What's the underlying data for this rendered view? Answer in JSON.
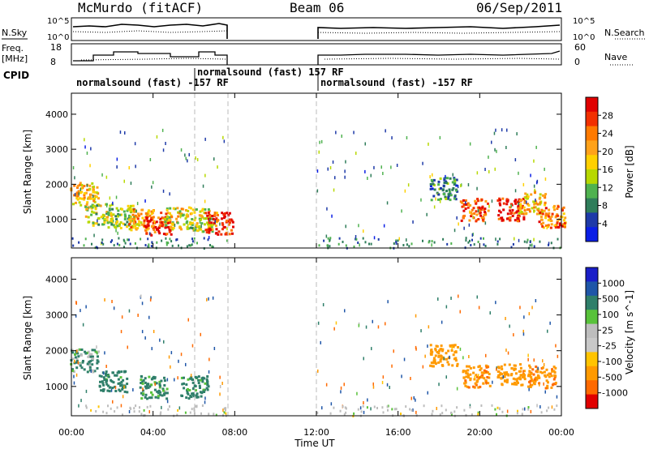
{
  "header": {
    "station": "McMurdo (fitACF)",
    "beam": "Beam 06",
    "date": "06/Sep/2011"
  },
  "noise_panel": {
    "left_label": "N.Sky",
    "right_label": "N.Search",
    "left_ticks": [
      "10^5",
      "10^0"
    ],
    "right_ticks": [
      "10^5",
      "10^0"
    ]
  },
  "freq_panel": {
    "left_label_1": "Freq.",
    "left_label_2": "[MHz]",
    "left_ticks": [
      "18",
      "8"
    ],
    "right_label": "Nave",
    "right_ticks": [
      "60",
      "0"
    ]
  },
  "cpid": {
    "label": "CPID",
    "segments": [
      {
        "text": "normalsound (fast) -157 RF",
        "start_h": 0.0
      },
      {
        "text": "normalsound (fast) 157 RF",
        "start_h": 6.1
      },
      {
        "text": "normalsound (fast) -157 RF",
        "start_h": 12.0
      }
    ]
  },
  "power_colorbar": {
    "title": "Power [dB]",
    "ticks": [
      "28",
      "24",
      "20",
      "16",
      "12",
      "8",
      "4"
    ],
    "colors": [
      "#e00000",
      "#f23000",
      "#ff7a00",
      "#ffa21a",
      "#ffd000",
      "#b7d800",
      "#4fb24f",
      "#2f7d5a",
      "#1e3aa8",
      "#0a1ee6"
    ]
  },
  "velocity_colorbar": {
    "title": "Velocity [m s^-1]",
    "ticks": [
      "1000",
      "500",
      "100",
      "25",
      "-25",
      "-100",
      "-500",
      "-1000"
    ],
    "colors": [
      "#1a1ec8",
      "#1f56a8",
      "#2f7f6a",
      "#58c23a",
      "#bdbdbd",
      "#c8c8c8",
      "#ffc400",
      "#ff9a00",
      "#ff6a00",
      "#e00000"
    ]
  },
  "axes": {
    "ylabel": "Slant Range [km]",
    "xlabel": "Time UT",
    "yticks": [
      "1000",
      "2000",
      "3000",
      "4000"
    ],
    "xticks": [
      "00:00",
      "04:00",
      "08:00",
      "12:00",
      "16:00",
      "20:00",
      "00:00"
    ]
  },
  "chart_data": {
    "type": "heatmap",
    "title": "McMurdo (fitACF) Beam 06 06/Sep/2011",
    "xlabel": "Time UT",
    "ylabel": "Slant Range [km]",
    "xlim": [
      0,
      24
    ],
    "ylim": [
      180,
      4600
    ],
    "data_gap_hours": [
      7.6,
      12.0
    ],
    "panels": [
      {
        "name": "Power [dB]",
        "scale": [
          0,
          30
        ],
        "blobs": [
          {
            "t": 0.6,
            "r": 1750,
            "v": 18
          },
          {
            "t": 1.3,
            "r": 1150,
            "v": 14
          },
          {
            "t": 2.4,
            "r": 1100,
            "v": 12
          },
          {
            "t": 3.4,
            "r": 1000,
            "v": 20
          },
          {
            "t": 4.2,
            "r": 900,
            "v": 26
          },
          {
            "t": 5.2,
            "r": 1050,
            "v": 16
          },
          {
            "t": 6.4,
            "r": 1000,
            "v": 14
          },
          {
            "t": 7.2,
            "r": 900,
            "v": 28
          },
          {
            "t": 18.2,
            "r": 1900,
            "v": 8
          },
          {
            "t": 19.7,
            "r": 1300,
            "v": 24
          },
          {
            "t": 21.5,
            "r": 1300,
            "v": 28
          },
          {
            "t": 22.5,
            "r": 1500,
            "v": 18
          },
          {
            "t": 23.5,
            "r": 1100,
            "v": 22
          }
        ]
      },
      {
        "name": "Velocity [m s^-1]",
        "scale": [
          -1000,
          1000
        ],
        "blobs": [
          {
            "t": 0.6,
            "r": 1750,
            "v": 80
          },
          {
            "t": 2.0,
            "r": 1150,
            "v": 150
          },
          {
            "t": 4.0,
            "r": 1000,
            "v": 120
          },
          {
            "t": 6.0,
            "r": 1000,
            "v": 130
          },
          {
            "t": 18.2,
            "r": 1900,
            "v": -200
          },
          {
            "t": 19.8,
            "r": 1300,
            "v": -250
          },
          {
            "t": 21.5,
            "r": 1350,
            "v": -200
          },
          {
            "t": 23.0,
            "r": 1300,
            "v": -250
          }
        ]
      }
    ]
  }
}
